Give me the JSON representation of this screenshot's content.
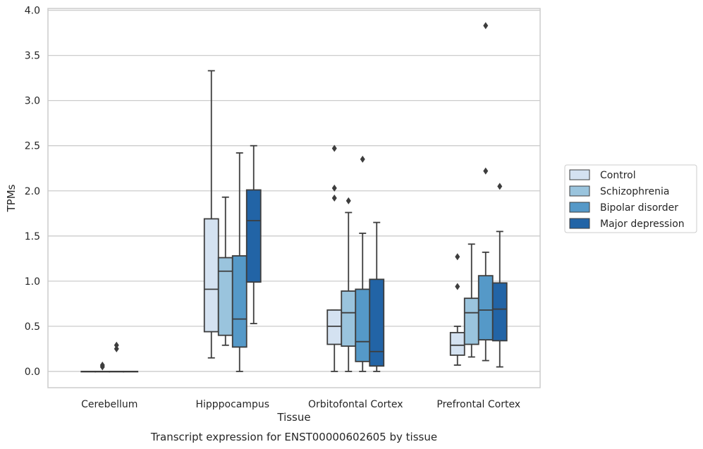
{
  "chart_data": {
    "type": "box",
    "title": "",
    "caption": "Transcript expression for ENST00000602605 by tissue",
    "xlabel": "Tissue",
    "ylabel": "TPMs",
    "ylim": [
      -0.18,
      4.02
    ],
    "yticks": [
      "0.0",
      "0.5",
      "1.0",
      "1.5",
      "2.0",
      "2.5",
      "3.0",
      "3.5",
      "4.0"
    ],
    "grid": "horizontal",
    "legend_position": "right",
    "categories": [
      "Cerebellum",
      "Hipppocampus",
      "Orbitofontal Cortex",
      "Prefrontal Cortex"
    ],
    "series": [
      {
        "name": "Control",
        "color": "#d4e2f1",
        "boxes": [
          {
            "whisker_low": 0.0,
            "q1": 0.0,
            "median": 0.0,
            "q3": 0.0,
            "whisker_high": 0.0,
            "outliers": []
          },
          {
            "whisker_low": 0.15,
            "q1": 0.44,
            "median": 0.91,
            "q3": 1.69,
            "whisker_high": 3.33,
            "outliers": []
          },
          {
            "whisker_low": 0.0,
            "q1": 0.3,
            "median": 0.5,
            "q3": 0.68,
            "whisker_high": 0.68,
            "outliers": [
              1.92,
              2.03,
              2.47
            ]
          },
          {
            "whisker_low": 0.07,
            "q1": 0.18,
            "median": 0.29,
            "q3": 0.43,
            "whisker_high": 0.5,
            "outliers": [
              0.94,
              1.27
            ]
          }
        ]
      },
      {
        "name": "Schizophrenia",
        "color": "#9ac4dd",
        "boxes": [
          {
            "whisker_low": 0.0,
            "q1": 0.0,
            "median": 0.0,
            "q3": 0.0,
            "whisker_high": 0.0,
            "outliers": [
              0.05,
              0.07
            ]
          },
          {
            "whisker_low": 0.29,
            "q1": 0.4,
            "median": 1.11,
            "q3": 1.26,
            "whisker_high": 1.93,
            "outliers": []
          },
          {
            "whisker_low": 0.0,
            "q1": 0.28,
            "median": 0.65,
            "q3": 0.89,
            "whisker_high": 1.76,
            "outliers": [
              1.89
            ]
          },
          {
            "whisker_low": 0.16,
            "q1": 0.3,
            "median": 0.65,
            "q3": 0.81,
            "whisker_high": 1.41,
            "outliers": []
          }
        ]
      },
      {
        "name": "Bipolar disorder",
        "color": "#5599c8",
        "boxes": [
          {
            "whisker_low": 0.0,
            "q1": 0.0,
            "median": 0.0,
            "q3": 0.0,
            "whisker_high": 0.0,
            "outliers": [
              0.25,
              0.29
            ]
          },
          {
            "whisker_low": 0.0,
            "q1": 0.27,
            "median": 0.58,
            "q3": 1.28,
            "whisker_high": 2.42,
            "outliers": []
          },
          {
            "whisker_low": 0.0,
            "q1": 0.11,
            "median": 0.33,
            "q3": 0.91,
            "whisker_high": 1.53,
            "outliers": [
              2.35
            ]
          },
          {
            "whisker_low": 0.12,
            "q1": 0.35,
            "median": 0.68,
            "q3": 1.06,
            "whisker_high": 1.32,
            "outliers": [
              2.22,
              3.83
            ]
          }
        ]
      },
      {
        "name": "Major depression",
        "color": "#2264a6",
        "boxes": [
          {
            "whisker_low": 0.0,
            "q1": 0.0,
            "median": 0.0,
            "q3": 0.0,
            "whisker_high": 0.0,
            "outliers": []
          },
          {
            "whisker_low": 0.53,
            "q1": 0.99,
            "median": 1.67,
            "q3": 2.01,
            "whisker_high": 2.5,
            "outliers": []
          },
          {
            "whisker_low": 0.0,
            "q1": 0.06,
            "median": 0.22,
            "q3": 1.02,
            "whisker_high": 1.65,
            "outliers": []
          },
          {
            "whisker_low": 0.05,
            "q1": 0.34,
            "median": 0.69,
            "q3": 0.98,
            "whisker_high": 1.55,
            "outliers": [
              2.05
            ]
          }
        ]
      }
    ]
  }
}
